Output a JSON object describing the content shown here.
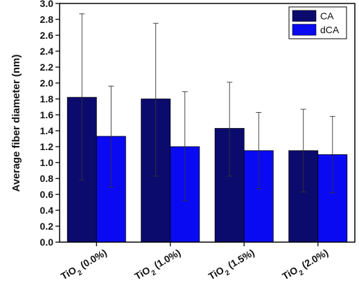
{
  "chart_data": {
    "type": "bar",
    "categories": [
      "TiO|2| (0.0%)",
      "TiO|2| (1.0%)",
      "TiO|2| (1.5%)",
      "TiO|2| (2.0%)"
    ],
    "series": [
      {
        "name": "CA",
        "color": "#0b0b6e",
        "values": [
          1.82,
          1.8,
          1.43,
          1.15
        ],
        "error_upper": [
          2.87,
          2.75,
          2.01,
          1.67
        ],
        "error_lower": [
          0.78,
          0.83,
          0.83,
          0.63
        ]
      },
      {
        "name": "dCA",
        "color": "#0a0af2",
        "values": [
          1.33,
          1.2,
          1.15,
          1.1
        ],
        "error_upper": [
          1.96,
          1.89,
          1.63,
          1.58
        ],
        "error_lower": [
          0.69,
          0.52,
          0.67,
          0.62
        ]
      }
    ],
    "title": "",
    "xlabel": "",
    "ylabel": "Average fiber diameter (nm)",
    "ylim": [
      0.0,
      3.0
    ],
    "yticks": [
      "0.0",
      "0.2",
      "0.4",
      "0.6",
      "0.8",
      "1.0",
      "1.2",
      "1.4",
      "1.6",
      "1.8",
      "2.0",
      "2.2",
      "2.4",
      "2.6",
      "2.8",
      "3.0"
    ],
    "legend": "top-right",
    "grid": false
  }
}
